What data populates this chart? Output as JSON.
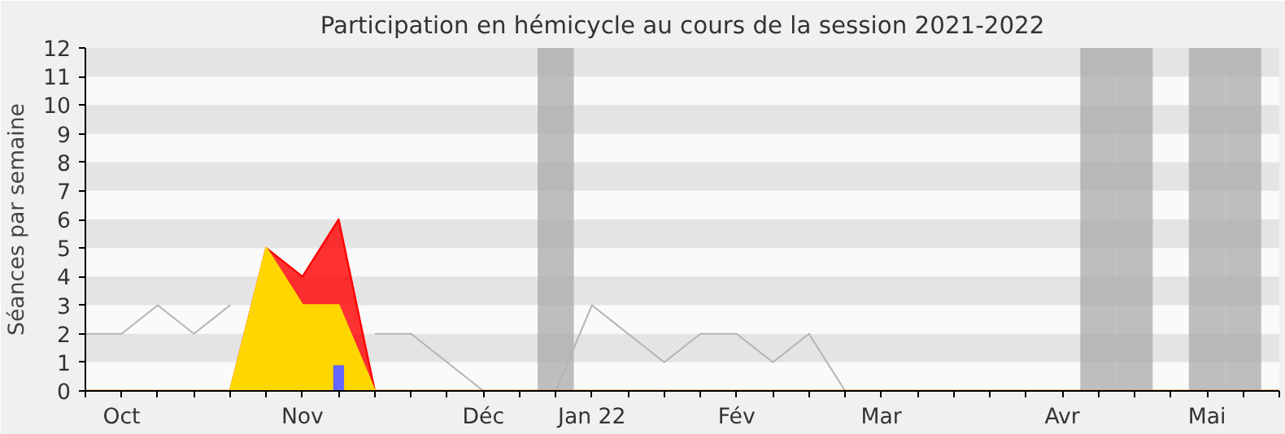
{
  "chart_data": {
    "type": "area",
    "title": "Participation en hémicycle au cours de la session 2021-2022",
    "ylabel": "Séances par semaine",
    "categories": [
      null,
      "Oct",
      null,
      null,
      null,
      null,
      "Nov",
      null,
      null,
      null,
      null,
      "Déc",
      null,
      null,
      "Jan 22",
      null,
      null,
      null,
      "Fév",
      null,
      null,
      null,
      "Mar",
      null,
      null,
      null,
      null,
      "Avr",
      null,
      null,
      null,
      "Mai",
      null,
      null
    ],
    "series": [
      {
        "type": "bar",
        "color": "#aaaaaa",
        "values": [
          null,
          null,
          null,
          null,
          null,
          null,
          null,
          null,
          null,
          null,
          null,
          null,
          null,
          12,
          null,
          null,
          null,
          null,
          null,
          null,
          null,
          null,
          null,
          null,
          null,
          null,
          null,
          null,
          12,
          12,
          null,
          12,
          12,
          null
        ]
      },
      {
        "type": "line",
        "color": "#b4b4b4",
        "values": [
          2,
          2,
          3,
          2,
          3,
          null,
          null,
          null,
          2,
          2,
          1,
          0,
          0,
          0,
          3,
          2,
          1,
          2,
          2,
          1,
          2,
          0,
          null,
          null,
          null,
          null,
          null,
          null,
          null,
          null,
          null,
          null,
          null,
          null
        ]
      },
      {
        "color": "#ff0000",
        "values": [
          0,
          0,
          0,
          0,
          0,
          5,
          4,
          6,
          0,
          0,
          0,
          0,
          0,
          0,
          0,
          0,
          0,
          0,
          0,
          0,
          0,
          0,
          0,
          0,
          0,
          0,
          0,
          0,
          0,
          0,
          0,
          0,
          0,
          0
        ]
      },
      {
        "color": "#ffd700",
        "values": [
          0,
          0,
          0,
          0,
          0,
          5,
          3,
          3,
          0,
          0,
          0,
          0,
          0,
          0,
          0,
          0,
          0,
          0,
          0,
          0,
          0,
          0,
          0,
          0,
          0,
          0,
          0,
          0,
          0,
          0,
          0,
          0,
          0,
          0
        ]
      },
      {
        "type": "bar",
        "color": "#6666ff",
        "values": [
          null,
          null,
          null,
          null,
          null,
          null,
          null,
          0.9,
          null,
          null,
          null,
          null,
          null,
          null,
          null,
          null,
          null,
          null,
          null,
          null,
          null,
          null,
          null,
          null,
          null,
          null,
          null,
          null,
          null,
          null,
          null,
          null,
          null,
          null
        ]
      }
    ],
    "ylim": [
      0,
      12
    ],
    "yticks": [
      0,
      1,
      2,
      3,
      4,
      5,
      6,
      7,
      8,
      9,
      10,
      11,
      12
    ]
  }
}
